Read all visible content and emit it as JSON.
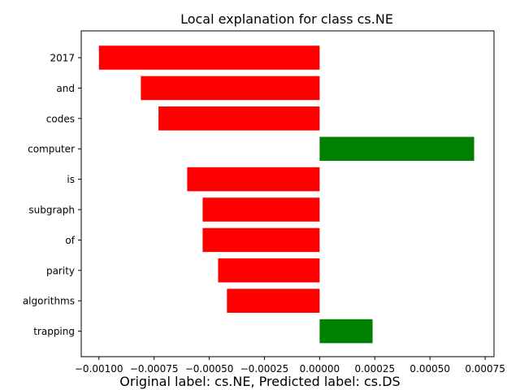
{
  "chart_data": {
    "type": "bar",
    "orientation": "horizontal",
    "title": "Local explanation for class cs.NE",
    "xlabel": "",
    "ylabel": "",
    "categories": [
      "2017",
      "and",
      "codes",
      "computer",
      "is",
      "subgraph",
      "of",
      "parity",
      "algorithms",
      "trapping"
    ],
    "values": [
      -0.001,
      -0.00081,
      -0.00073,
      0.0007,
      -0.0006,
      -0.00053,
      -0.00053,
      -0.00046,
      -0.00042,
      0.00024
    ],
    "xlim": [
      -0.00108,
      0.00079
    ],
    "xticks": [
      -0.001,
      -0.00075,
      -0.0005,
      -0.00025,
      0.0,
      0.00025,
      0.0005,
      0.00075
    ],
    "xtick_labels": [
      "−0.00100",
      "−0.00075",
      "−0.00050",
      "−0.00025",
      "0.00000",
      "0.00025",
      "0.00050",
      "0.00075"
    ],
    "colors": {
      "positive": "#008000",
      "negative": "#ff0000"
    },
    "grid": false
  },
  "caption": "Original label: cs.NE, Predicted label: cs.DS"
}
